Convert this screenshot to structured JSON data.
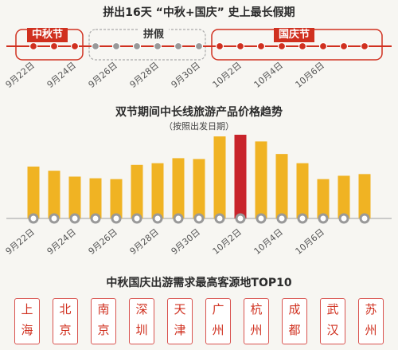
{
  "headline": "拼出16天 “中秋+国庆” 史上最长假期",
  "timeline": {
    "segments": [
      {
        "label": "中秋节",
        "color": "#d0301f"
      },
      {
        "label": "拼假",
        "color": "#aaaaaa"
      },
      {
        "label": "国庆节",
        "color": "#d0301f"
      }
    ],
    "date_labels": [
      "9月22日",
      "9月24日",
      "9月26日",
      "9月28日",
      "9月30日",
      "10月2日",
      "10月4日",
      "10月6日"
    ]
  },
  "colors": {
    "accent": "#d0301f",
    "bar": "#f0b323",
    "bar_peak": "#c8242b",
    "dot": "#999999"
  },
  "chart_data": {
    "type": "bar",
    "title": "双节期间中长线旅游产品价格趋势",
    "subtitle": "（按照出发日期）",
    "tick_labels": [
      "9月22日",
      "9月24日",
      "9月26日",
      "9月28日",
      "9月30日",
      "10月2日",
      "10月4日",
      "10月6日"
    ],
    "values": [
      62,
      57,
      50,
      48,
      47,
      64,
      66,
      72,
      71,
      98,
      100,
      92,
      77,
      66,
      47,
      51,
      53
    ],
    "highlight_index": 10
  },
  "origins": {
    "title": "中秋国庆出游需求最高客源地TOP10",
    "cities": [
      [
        "上",
        "海"
      ],
      [
        "北",
        "京"
      ],
      [
        "南",
        "京"
      ],
      [
        "深",
        "圳"
      ],
      [
        "天",
        "津"
      ],
      [
        "广",
        "州"
      ],
      [
        "杭",
        "州"
      ],
      [
        "成",
        "都"
      ],
      [
        "武",
        "汉"
      ],
      [
        "苏",
        "州"
      ]
    ]
  }
}
